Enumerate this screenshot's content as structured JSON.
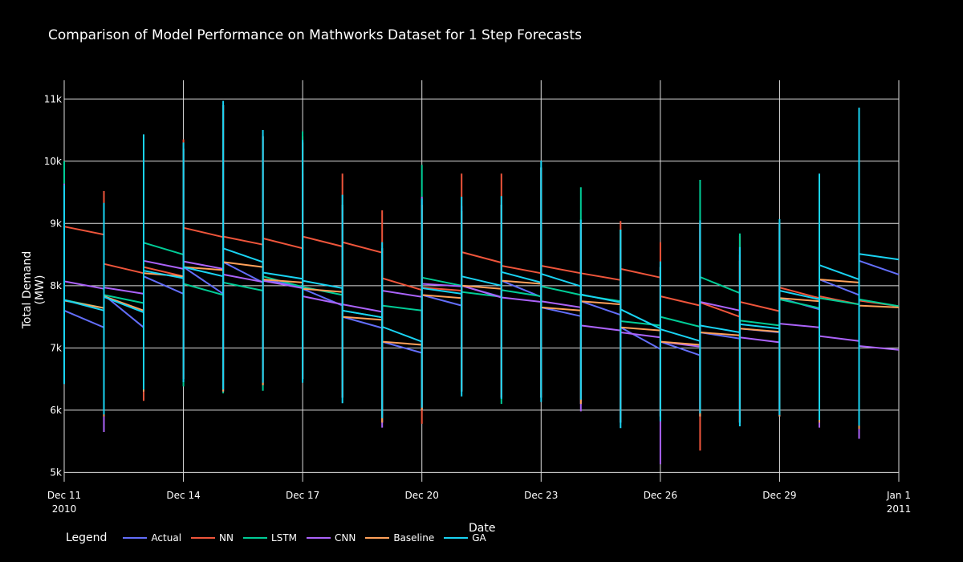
{
  "chart_data": {
    "type": "line",
    "title": "Comparison of Model Performance on Mathworks Dataset for 1 Step Forecasts",
    "xlabel": "Date",
    "ylabel": "Total Demand (MW)",
    "x_tick_labels": [
      {
        "date": "2010-12-11",
        "line1": "Dec 11",
        "line2": "2010"
      },
      {
        "date": "2010-12-14",
        "line1": "Dec 14",
        "line2": ""
      },
      {
        "date": "2010-12-17",
        "line1": "Dec 17",
        "line2": ""
      },
      {
        "date": "2010-12-20",
        "line1": "Dec 20",
        "line2": ""
      },
      {
        "date": "2010-12-23",
        "line1": "Dec 23",
        "line2": ""
      },
      {
        "date": "2010-12-26",
        "line1": "Dec 26",
        "line2": ""
      },
      {
        "date": "2010-12-29",
        "line1": "Dec 29",
        "line2": ""
      },
      {
        "date": "2011-01-01",
        "line1": "Jan 1",
        "line2": "2011"
      }
    ],
    "y_ticks": [
      5000,
      6000,
      7000,
      8000,
      9000,
      10000,
      11000
    ],
    "y_tick_labels": [
      "5k",
      "6k",
      "7k",
      "8k",
      "9k",
      "10k",
      "11k"
    ],
    "xlim": [
      "2010-12-11",
      "2011-01-01"
    ],
    "ylim": [
      4850,
      11300
    ],
    "grid": true,
    "legend_title": "Legend",
    "legend_position": "bottom",
    "days": [
      "2010-12-11",
      "2010-12-12",
      "2010-12-13",
      "2010-12-14",
      "2010-12-15",
      "2010-12-16",
      "2010-12-17",
      "2010-12-18",
      "2010-12-19",
      "2010-12-20",
      "2010-12-21",
      "2010-12-22",
      "2010-12-23",
      "2010-12-24",
      "2010-12-25",
      "2010-12-26",
      "2010-12-27",
      "2010-12-28",
      "2010-12-29",
      "2010-12-30",
      "2010-12-31"
    ],
    "series": [
      {
        "name": "Actual",
        "color": "#636efa",
        "start": [
          7600,
          7850,
          8150,
          8300,
          8380,
          8100,
          7950,
          7500,
          7100,
          7850,
          8000,
          8080,
          7650,
          7750,
          7330,
          7100,
          7250,
          7310,
          7800,
          8100,
          8400
        ],
        "end": [
          7330,
          7330,
          7870,
          7870,
          8050,
          7980,
          7680,
          7320,
          6920,
          7680,
          7820,
          7820,
          7510,
          7530,
          6980,
          6880,
          7150,
          7250,
          7620,
          7850,
          8180
        ],
        "low": [
          6500,
          5700,
          6300,
          6500,
          6300,
          6400,
          6500,
          6200,
          5800,
          6000,
          6300,
          6200,
          6200,
          6100,
          5800,
          5900,
          5900,
          5800,
          5900,
          5800,
          5700
        ],
        "high": [
          9600,
          9300,
          10200,
          10200,
          10900,
          10400,
          10300,
          9300,
          8600,
          9300,
          9200,
          9300,
          9900,
          9000,
          8900,
          8300,
          9000,
          8400,
          9000,
          9700,
          10800
        ]
      },
      {
        "name": "NN",
        "color": "#ef553b",
        "start": [
          8950,
          8350,
          8300,
          8930,
          8790,
          8760,
          8790,
          8700,
          8120,
          7970,
          8540,
          8320,
          8320,
          8200,
          8270,
          7830,
          7730,
          7740,
          7970,
          7830,
          7760
        ],
        "end": [
          8820,
          8200,
          8150,
          8780,
          8660,
          8600,
          8630,
          8530,
          7930,
          7920,
          8370,
          8200,
          8200,
          8090,
          8130,
          7680,
          7500,
          7590,
          7800,
          7700,
          7670
        ],
        "low": [
          6500,
          5900,
          6150,
          6500,
          6300,
          6400,
          6500,
          6200,
          5800,
          5780,
          6300,
          6200,
          6200,
          6100,
          5800,
          5900,
          5350,
          5800,
          5900,
          5800,
          5700
        ],
        "high": [
          9900,
          9520,
          10200,
          10350,
          10900,
          10400,
          10400,
          9800,
          9210,
          9300,
          9800,
          9800,
          9900,
          9000,
          9040,
          8700,
          9000,
          8800,
          9000,
          9700,
          10800
        ]
      },
      {
        "name": "LSTM",
        "color": "#00cc96",
        "start": [
          7770,
          7850,
          8690,
          8030,
          8050,
          8150,
          7980,
          7600,
          7680,
          8130,
          7900,
          7930,
          7990,
          7850,
          7430,
          7500,
          8140,
          7440,
          7780,
          7800,
          7780
        ],
        "end": [
          7640,
          7720,
          8500,
          7850,
          7920,
          7980,
          7850,
          7490,
          7600,
          8000,
          7820,
          7830,
          7850,
          7750,
          7360,
          7340,
          7880,
          7360,
          7640,
          7700,
          7670
        ],
        "low": [
          6500,
          5900,
          6300,
          6380,
          6270,
          6310,
          6500,
          6200,
          5800,
          6000,
          6300,
          6100,
          6200,
          6100,
          5800,
          5900,
          5900,
          5800,
          5900,
          5800,
          5700
        ],
        "high": [
          10000,
          9300,
          10200,
          10200,
          10900,
          10400,
          10480,
          9300,
          8600,
          9940,
          9200,
          9300,
          9900,
          9580,
          8900,
          8300,
          9700,
          8840,
          9000,
          9700,
          10800
        ]
      },
      {
        "name": "CNN",
        "color": "#ab63fa",
        "start": [
          8070,
          7970,
          8400,
          8390,
          8180,
          8080,
          7830,
          7700,
          7920,
          8030,
          8000,
          7810,
          7750,
          7360,
          7250,
          7100,
          7740,
          7170,
          7390,
          7190,
          7030
        ],
        "end": [
          7950,
          7870,
          8270,
          8270,
          8060,
          7960,
          7700,
          7580,
          7820,
          7990,
          7810,
          7740,
          7650,
          7280,
          7170,
          7020,
          7600,
          7090,
          7330,
          7110,
          6970
        ],
        "low": [
          6500,
          5650,
          6300,
          6500,
          6300,
          6640,
          6500,
          6200,
          5720,
          6000,
          6300,
          6200,
          6200,
          5980,
          5800,
          5130,
          5900,
          5800,
          5900,
          5720,
          5540
        ],
        "high": [
          9640,
          9300,
          10200,
          10200,
          10900,
          10400,
          9800,
          9260,
          8600,
          9430,
          9280,
          9300,
          9900,
          9000,
          8600,
          8300,
          9000,
          8500,
          9000,
          9700,
          10800
        ]
      },
      {
        "name": "Baseline",
        "color": "#ffa15a",
        "start": [
          7760,
          7830,
          8200,
          8300,
          8380,
          8100,
          7950,
          7500,
          7100,
          7850,
          8000,
          8080,
          7650,
          7750,
          7330,
          7100,
          7250,
          7310,
          7800,
          8100,
          7680
        ],
        "end": [
          7640,
          7600,
          8150,
          8250,
          8300,
          8050,
          7900,
          7450,
          7050,
          7800,
          7950,
          8030,
          7600,
          7700,
          7280,
          7050,
          7200,
          7260,
          7750,
          8050,
          7650
        ],
        "low": [
          6500,
          5900,
          6300,
          6500,
          6300,
          6400,
          6500,
          6200,
          5800,
          6000,
          6300,
          6200,
          6200,
          6100,
          5800,
          5900,
          5900,
          5800,
          5900,
          5800,
          5700
        ],
        "high": [
          9600,
          9300,
          10200,
          10200,
          10900,
          10400,
          10300,
          9300,
          8600,
          9300,
          9200,
          9300,
          9900,
          9000,
          8900,
          8300,
          9000,
          8400,
          9000,
          9700,
          10800
        ]
      },
      {
        "name": "GA",
        "color": "#19d3f3",
        "start": [
          7770,
          7820,
          8240,
          8300,
          8600,
          8210,
          8080,
          7600,
          7340,
          7960,
          8150,
          8220,
          8190,
          7860,
          7620,
          7300,
          7360,
          7380,
          7920,
          8330,
          8510
        ],
        "end": [
          7600,
          7570,
          8120,
          8150,
          8380,
          8110,
          7960,
          7490,
          7100,
          7870,
          8000,
          8050,
          7990,
          7730,
          7310,
          7110,
          7250,
          7310,
          7780,
          8100,
          8420
        ],
        "low": [
          6420,
          5930,
          6330,
          6450,
          6330,
          6440,
          6440,
          6110,
          5870,
          6040,
          6220,
          6180,
          6130,
          6170,
          5710,
          5820,
          5950,
          5740,
          5920,
          5840,
          5750
        ],
        "high": [
          9620,
          9330,
          10430,
          10300,
          10970,
          10500,
          10340,
          9460,
          8700,
          9400,
          9430,
          9440,
          10010,
          9060,
          8900,
          8390,
          9050,
          8620,
          9070,
          9800,
          10860
        ]
      }
    ]
  }
}
